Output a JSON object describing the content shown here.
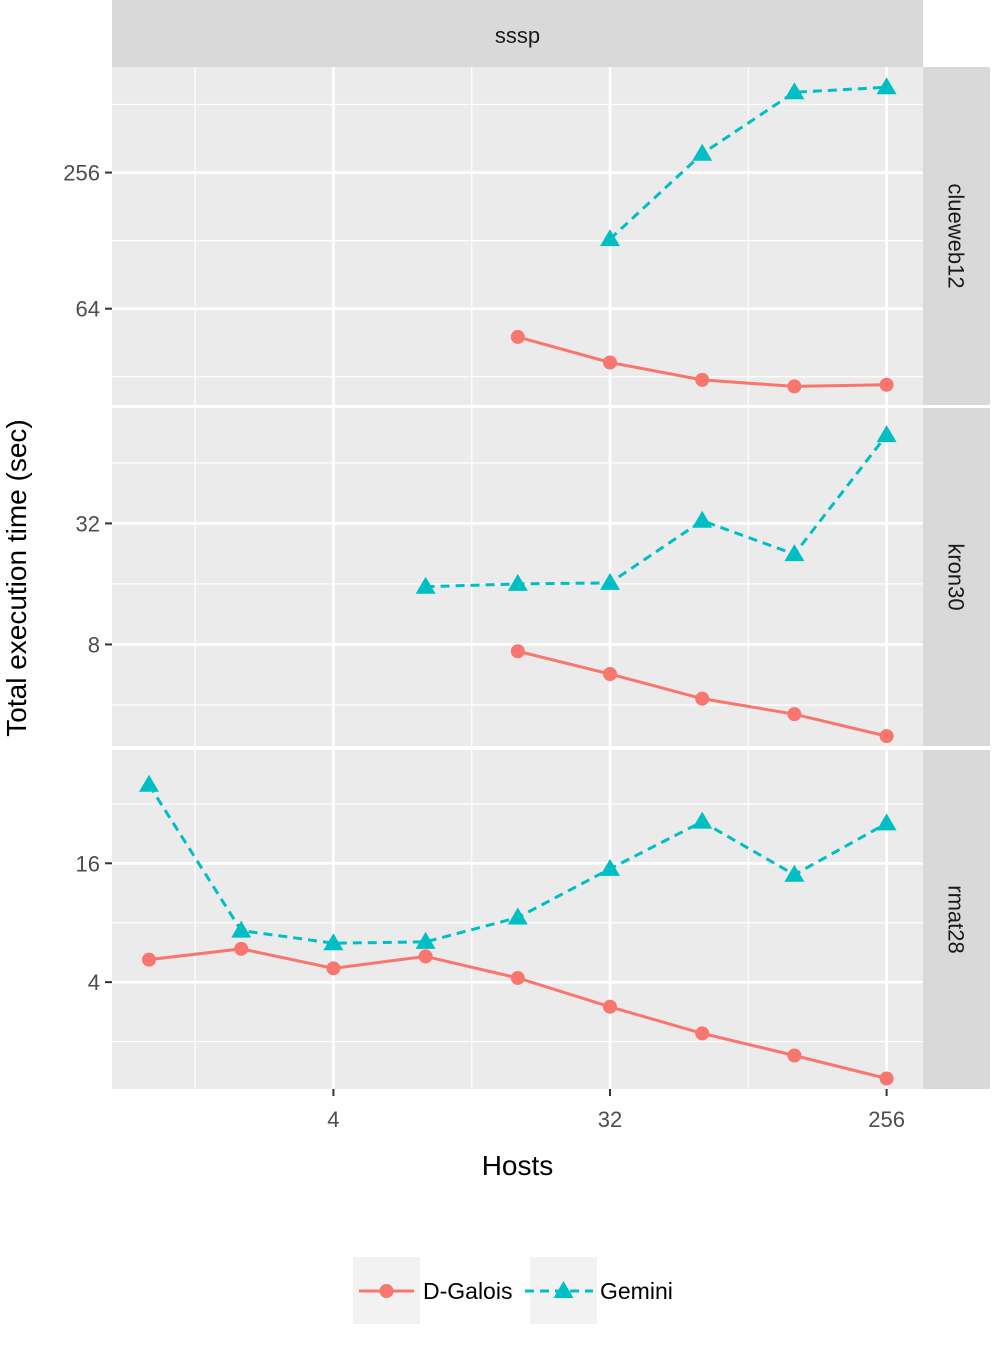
{
  "chart_data": {
    "type": "line",
    "facet_title": "sssp",
    "xlabel": "Hosts",
    "ylabel": "Total execution time (sec)",
    "x_scale": "log2",
    "y_scale": "log2",
    "x_ticks": [
      4,
      32,
      256
    ],
    "x_tick_labels": [
      "4",
      "32",
      "256"
    ],
    "legend_position": "bottom",
    "series_styles": [
      {
        "name": "D-Galois",
        "color": "#F8766D",
        "shape": "circle",
        "linetype": "solid"
      },
      {
        "name": "Gemini",
        "color": "#00BFC4",
        "shape": "triangle",
        "linetype": "dashed"
      }
    ],
    "panels": [
      {
        "name": "clueweb12",
        "y_ticks": [
          64,
          256
        ],
        "y_tick_labels": [
          "64",
          "256"
        ],
        "ylim": [
          24,
          750
        ],
        "series": [
          {
            "name": "D-Galois",
            "x": [
              16,
              32,
              64,
              128,
              256
            ],
            "y": [
              48,
              37,
              31,
              29,
              29.5
            ]
          },
          {
            "name": "Gemini",
            "x": [
              32,
              64,
              128,
              256
            ],
            "y": [
              130,
              310,
              580,
              610
            ]
          }
        ]
      },
      {
        "name": "kron30",
        "y_ticks": [
          8,
          32
        ],
        "y_tick_labels": [
          "8",
          "32"
        ],
        "ylim": [
          2.5,
          120
        ],
        "series": [
          {
            "name": "D-Galois",
            "x": [
              16,
              32,
              64,
              128,
              256
            ],
            "y": [
              7.4,
              5.7,
              4.3,
              3.6,
              2.8
            ]
          },
          {
            "name": "Gemini",
            "x": [
              8,
              16,
              32,
              64,
              128,
              256
            ],
            "y": [
              15.5,
              16,
              16.2,
              33,
              22.5,
              88
            ]
          }
        ]
      },
      {
        "name": "rmat28",
        "y_ticks": [
          4,
          16
        ],
        "y_tick_labels": [
          "4",
          "16"
        ],
        "ylim": [
          1.15,
          60
        ],
        "series": [
          {
            "name": "D-Galois",
            "x": [
              1,
              2,
              4,
              8,
              16,
              32,
              64,
              128,
              256
            ],
            "y": [
              5.2,
              5.9,
              4.7,
              5.4,
              4.2,
              3.0,
              2.2,
              1.7,
              1.3
            ]
          },
          {
            "name": "Gemini",
            "x": [
              1,
              2,
              4,
              8,
              16,
              32,
              64,
              128,
              256
            ],
            "y": [
              40,
              7.3,
              6.3,
              6.4,
              8.5,
              15,
              26,
              14,
              25.5
            ]
          }
        ]
      }
    ]
  }
}
